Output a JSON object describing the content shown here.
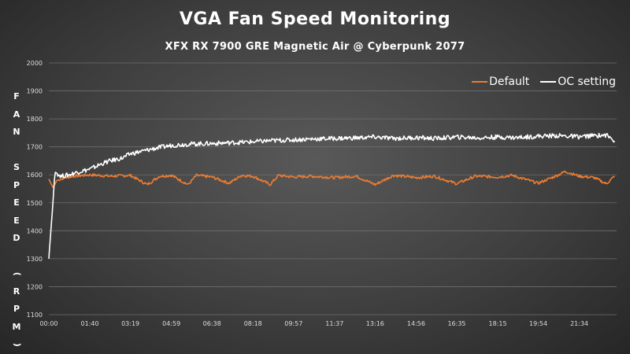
{
  "chart_data": {
    "type": "line",
    "title": "VGA Fan Speed Monitoring",
    "subtitle": "XFX RX 7900 GRE Magnetic Air @ Cyberpunk 2077",
    "ylabel": "FAN SPEED (RPM)",
    "xlabel": "",
    "ylim": [
      1100,
      2000
    ],
    "y_ticks": [
      "1100",
      "1200",
      "1300",
      "1400",
      "1500",
      "1600",
      "1700",
      "1800",
      "1900",
      "2000"
    ],
    "x_ticks": [
      "00:00",
      "01:40",
      "03:19",
      "04:59",
      "06:38",
      "08:18",
      "09:57",
      "11:37",
      "13:16",
      "14:56",
      "16:35",
      "18:15",
      "19:54",
      "21:34"
    ],
    "grid": true,
    "legend_position": "top-right",
    "series": [
      {
        "name": "Default",
        "color": "#ed7d31",
        "x": [
          "00:00",
          "00:10",
          "00:20",
          "00:40",
          "01:00",
          "01:40",
          "02:30",
          "03:19",
          "04:00",
          "04:30",
          "04:59",
          "05:40",
          "06:00",
          "06:38",
          "07:20",
          "07:50",
          "08:18",
          "09:00",
          "09:20",
          "09:57",
          "10:40",
          "11:37",
          "12:30",
          "13:16",
          "14:00",
          "14:56",
          "15:40",
          "16:35",
          "17:20",
          "18:15",
          "18:50",
          "19:54",
          "20:40",
          "21:00",
          "21:34",
          "22:10",
          "22:40",
          "23:00"
        ],
        "values": [
          1585,
          1555,
          1580,
          1590,
          1595,
          1600,
          1595,
          1598,
          1565,
          1595,
          1598,
          1565,
          1598,
          1592,
          1570,
          1598,
          1595,
          1565,
          1598,
          1592,
          1595,
          1590,
          1595,
          1565,
          1598,
          1590,
          1595,
          1568,
          1595,
          1592,
          1598,
          1570,
          1598,
          1612,
          1595,
          1590,
          1568,
          1595
        ]
      },
      {
        "name": "OC setting",
        "color": "#ffffff",
        "x": [
          "00:00",
          "00:05",
          "00:10",
          "00:15",
          "00:30",
          "00:50",
          "01:10",
          "01:40",
          "02:10",
          "02:30",
          "03:00",
          "03:19",
          "03:50",
          "04:20",
          "04:59",
          "05:40",
          "06:38",
          "07:30",
          "08:18",
          "09:00",
          "09:57",
          "10:40",
          "11:37",
          "12:30",
          "13:16",
          "14:00",
          "14:56",
          "15:40",
          "16:35",
          "17:30",
          "18:15",
          "19:00",
          "19:54",
          "20:40",
          "21:34",
          "22:10",
          "22:40",
          "23:00"
        ],
        "values": [
          1300,
          1400,
          1500,
          1610,
          1595,
          1600,
          1610,
          1620,
          1640,
          1650,
          1660,
          1675,
          1685,
          1695,
          1705,
          1710,
          1712,
          1715,
          1718,
          1722,
          1725,
          1728,
          1730,
          1732,
          1735,
          1730,
          1733,
          1730,
          1735,
          1732,
          1735,
          1733,
          1738,
          1740,
          1736,
          1740,
          1742,
          1722
        ]
      }
    ]
  }
}
